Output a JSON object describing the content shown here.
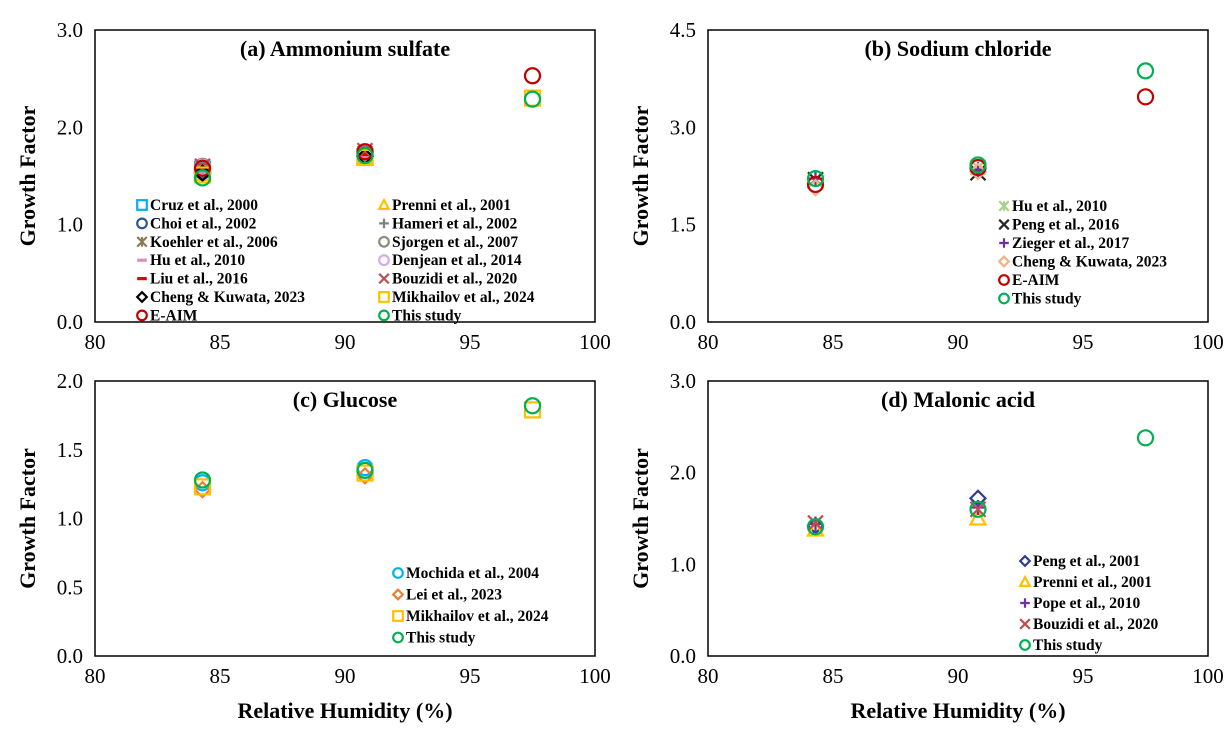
{
  "chart_data": [
    {
      "type": "scatter",
      "title": "(a) Ammonium sulfate",
      "xlabel": "",
      "ylabel": "Growth Factor",
      "xlim": [
        80,
        100
      ],
      "ylim": [
        0,
        3
      ],
      "xticks": [
        "80",
        "85",
        "90",
        "95",
        "100"
      ],
      "yticks": [
        "0.0",
        "1.0",
        "2.0",
        "3.0"
      ],
      "legend_columns": 2,
      "series": [
        {
          "name": "Cruz et al., 2000",
          "marker": "square",
          "color": "#00b0f0",
          "points": [
            [
              84.3,
              1.57
            ],
            [
              90.8,
              1.7
            ]
          ]
        },
        {
          "name": "Prenni et al., 2001",
          "marker": "triangle",
          "color": "#ffc000",
          "points": [
            [
              84.3,
              1.52
            ],
            [
              90.8,
              1.68
            ]
          ]
        },
        {
          "name": "Choi et al., 2002",
          "marker": "circle",
          "color": "#2f5597",
          "points": [
            [
              84.3,
              1.55
            ],
            [
              90.8,
              1.72
            ]
          ]
        },
        {
          "name": "Hameri et al., 2002",
          "marker": "plus",
          "color": "#7f7f7f",
          "points": [
            [
              84.3,
              1.58
            ],
            [
              90.8,
              1.71
            ]
          ]
        },
        {
          "name": "Koehler et al., 2006",
          "marker": "star",
          "color": "#8c7b56",
          "points": [
            [
              84.3,
              1.56
            ],
            [
              90.8,
              1.73
            ]
          ]
        },
        {
          "name": "Sjorgen et al., 2007",
          "marker": "circle",
          "color": "#8c8c7a",
          "points": [
            [
              84.3,
              1.6
            ],
            [
              90.8,
              1.74
            ]
          ]
        },
        {
          "name": "Hu et al., 2010",
          "marker": "dash",
          "color": "#d98ec2",
          "points": [
            [
              84.3,
              1.55
            ],
            [
              90.8,
              1.7
            ]
          ]
        },
        {
          "name": "Denjean et al., 2014",
          "marker": "circle",
          "color": "#d7a8e8",
          "points": [
            [
              84.3,
              1.59
            ],
            [
              90.8,
              1.75
            ]
          ]
        },
        {
          "name": "Liu et al., 2016",
          "marker": "dash",
          "color": "#e00000",
          "points": [
            [
              84.3,
              1.57
            ],
            [
              90.8,
              1.72
            ]
          ]
        },
        {
          "name": "Bouzidi et al., 2020",
          "marker": "x",
          "color": "#c0504d",
          "points": [
            [
              84.3,
              1.6
            ],
            [
              90.8,
              1.76
            ]
          ]
        },
        {
          "name": "Cheng & Kuwata, 2023",
          "marker": "diamond",
          "color": "#000000",
          "points": [
            [
              84.3,
              1.53
            ],
            [
              90.8,
              1.7
            ]
          ]
        },
        {
          "name": "Mikhailov et al., 2024",
          "marker": "square",
          "color": "#ffc000",
          "points": [
            [
              84.3,
              1.51
            ],
            [
              90.8,
              1.69
            ],
            [
              97.5,
              2.3
            ]
          ]
        },
        {
          "name": "E-AIM",
          "marker": "circle",
          "color": "#c00000",
          "points": [
            [
              84.3,
              1.58
            ],
            [
              90.8,
              1.75
            ],
            [
              97.5,
              2.53
            ]
          ]
        },
        {
          "name": "This study",
          "marker": "circle",
          "color": "#00b050",
          "points": [
            [
              84.3,
              1.48
            ],
            [
              90.8,
              1.71
            ],
            [
              97.5,
              2.29
            ]
          ]
        }
      ]
    },
    {
      "type": "scatter",
      "title": "(b) Sodium chloride",
      "xlabel": "",
      "ylabel": "Growth Factor",
      "xlim": [
        80,
        100
      ],
      "ylim": [
        0,
        4.5
      ],
      "xticks": [
        "80",
        "85",
        "90",
        "95",
        "100"
      ],
      "yticks": [
        "0.0",
        "1.5",
        "3.0",
        "4.5"
      ],
      "legend_columns": 1,
      "series": [
        {
          "name": "Hu et al., 2010",
          "marker": "star",
          "color": "#a9d18e",
          "points": [
            [
              84.3,
              2.2
            ],
            [
              90.8,
              2.38
            ]
          ]
        },
        {
          "name": "Peng et al., 2016",
          "marker": "x",
          "color": "#262626",
          "points": [
            [
              84.3,
              2.19
            ],
            [
              90.8,
              2.3
            ]
          ]
        },
        {
          "name": "Zieger et al., 2017",
          "marker": "plus",
          "color": "#7030a0",
          "points": [
            [
              84.3,
              2.21
            ],
            [
              90.8,
              2.35
            ]
          ]
        },
        {
          "name": "Cheng & Kuwata, 2023",
          "marker": "diamond",
          "color": "#f4b183",
          "points": [
            [
              84.3,
              2.07
            ],
            [
              90.8,
              2.32
            ]
          ]
        },
        {
          "name": "E-AIM",
          "marker": "circle",
          "color": "#c00000",
          "points": [
            [
              84.3,
              2.12
            ],
            [
              90.8,
              2.38
            ],
            [
              97.5,
              3.47
            ]
          ]
        },
        {
          "name": "This study",
          "marker": "circle",
          "color": "#00b050",
          "points": [
            [
              84.3,
              2.21
            ],
            [
              90.8,
              2.42
            ],
            [
              97.5,
              3.87
            ]
          ]
        }
      ]
    },
    {
      "type": "scatter",
      "title": "(c) Glucose",
      "xlabel": "Relative Humidity (%)",
      "ylabel": "Growth Factor",
      "xlim": [
        80,
        100
      ],
      "ylim": [
        0,
        2
      ],
      "xticks": [
        "80",
        "85",
        "90",
        "95",
        "100"
      ],
      "yticks": [
        "0.0",
        "0.5",
        "1.0",
        "1.5",
        "2.0"
      ],
      "legend_columns": 1,
      "series": [
        {
          "name": "Mochida et al., 2004",
          "marker": "circle",
          "color": "#00b0f0",
          "points": [
            [
              84.3,
              1.26
            ],
            [
              90.8,
              1.37
            ]
          ]
        },
        {
          "name": "Lei et al., 2023",
          "marker": "diamond",
          "color": "#ed7d31",
          "points": [
            [
              84.3,
              1.21
            ],
            [
              90.8,
              1.31
            ]
          ]
        },
        {
          "name": "Mikhailov et al., 2024",
          "marker": "square",
          "color": "#ffc000",
          "points": [
            [
              84.3,
              1.23
            ],
            [
              90.8,
              1.33
            ],
            [
              97.5,
              1.79
            ]
          ]
        },
        {
          "name": "This study",
          "marker": "circle",
          "color": "#00b050",
          "points": [
            [
              84.3,
              1.28
            ],
            [
              90.8,
              1.35
            ],
            [
              97.5,
              1.82
            ]
          ]
        }
      ]
    },
    {
      "type": "scatter",
      "title": "(d) Malonic acid",
      "xlabel": "Relative Humidity (%)",
      "ylabel": "Growth Factor",
      "xlim": [
        80,
        100
      ],
      "ylim": [
        0,
        3
      ],
      "xticks": [
        "80",
        "85",
        "90",
        "95",
        "100"
      ],
      "yticks": [
        "0.0",
        "1.0",
        "2.0",
        "3.0"
      ],
      "legend_columns": 1,
      "series": [
        {
          "name": "Peng et al., 2001",
          "marker": "diamond",
          "color": "#2f3e8f",
          "points": [
            [
              84.3,
              1.42
            ],
            [
              90.8,
              1.72
            ]
          ]
        },
        {
          "name": "Prenni et al., 2001",
          "marker": "triangle",
          "color": "#ffc000",
          "points": [
            [
              84.3,
              1.38
            ],
            [
              90.8,
              1.5
            ]
          ]
        },
        {
          "name": "Pope et al., 2010",
          "marker": "plus",
          "color": "#7030a0",
          "points": [
            [
              84.3,
              1.44
            ],
            [
              90.8,
              1.62
            ]
          ]
        },
        {
          "name": "Bouzidi et al., 2020",
          "marker": "x",
          "color": "#c0504d",
          "points": [
            [
              84.3,
              1.45
            ],
            [
              90.8,
              1.6
            ]
          ]
        },
        {
          "name": "This study",
          "marker": "circle",
          "color": "#00b050",
          "points": [
            [
              84.3,
              1.41
            ],
            [
              90.8,
              1.6
            ],
            [
              97.5,
              2.38
            ]
          ]
        }
      ]
    }
  ]
}
